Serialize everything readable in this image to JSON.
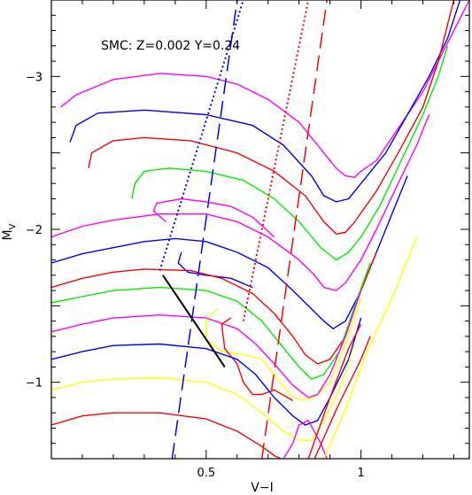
{
  "chart_data": {
    "type": "line",
    "title": "",
    "annotation": "SMC: Z=0.002 Y=0.24",
    "xlabel": "V−I",
    "ylabel_main": "M",
    "ylabel_sub": "V",
    "xlim": [
      0.0,
      1.35
    ],
    "ylim": [
      -0.5,
      -3.5
    ],
    "x_ticks": [
      {
        "value": 0.5,
        "label": "0.5"
      },
      {
        "value": 1.0,
        "label": "1"
      }
    ],
    "y_ticks": [
      {
        "value": -3,
        "label": "−3"
      },
      {
        "value": -2,
        "label": "−2"
      },
      {
        "value": -1,
        "label": "−1"
      }
    ],
    "grid": false,
    "colors": {
      "magenta": "#ff00ff",
      "blue": "#0000ff",
      "red": "#ff0000",
      "green": "#00ee00",
      "yellow": "#ffff00",
      "black": "#000000"
    },
    "tracks": [
      {
        "color": "magenta",
        "points": [
          [
            0.03,
            -2.8
          ],
          [
            0.08,
            -2.88
          ],
          [
            0.2,
            -2.98
          ],
          [
            0.35,
            -3.02
          ],
          [
            0.5,
            -3.0
          ],
          [
            0.6,
            -2.95
          ],
          [
            0.7,
            -2.85
          ],
          [
            0.8,
            -2.7
          ],
          [
            0.88,
            -2.5
          ],
          [
            0.92,
            -2.4
          ],
          [
            0.95,
            -2.35
          ],
          [
            0.98,
            -2.34
          ],
          [
            1.0,
            -2.38
          ],
          [
            1.05,
            -2.45
          ],
          [
            1.1,
            -2.6
          ],
          [
            1.2,
            -2.9
          ],
          [
            1.3,
            -3.3
          ],
          [
            1.35,
            -3.5
          ]
        ]
      },
      {
        "color": "blue",
        "points": [
          [
            0.06,
            -2.57
          ],
          [
            0.08,
            -2.68
          ],
          [
            0.15,
            -2.76
          ],
          [
            0.3,
            -2.78
          ],
          [
            0.5,
            -2.75
          ],
          [
            0.65,
            -2.68
          ],
          [
            0.75,
            -2.55
          ],
          [
            0.84,
            -2.35
          ],
          [
            0.88,
            -2.22
          ],
          [
            0.92,
            -2.18
          ],
          [
            0.96,
            -2.2
          ],
          [
            1.0,
            -2.3
          ],
          [
            1.08,
            -2.5
          ],
          [
            1.15,
            -2.75
          ],
          [
            1.22,
            -3.0
          ],
          [
            1.28,
            -3.25
          ],
          [
            1.32,
            -3.5
          ]
        ]
      },
      {
        "color": "red",
        "points": [
          [
            0.12,
            -2.4
          ],
          [
            0.13,
            -2.5
          ],
          [
            0.2,
            -2.58
          ],
          [
            0.3,
            -2.6
          ],
          [
            0.45,
            -2.58
          ],
          [
            0.6,
            -2.5
          ],
          [
            0.72,
            -2.38
          ],
          [
            0.82,
            -2.22
          ],
          [
            0.88,
            -2.05
          ],
          [
            0.92,
            -1.97
          ],
          [
            0.95,
            -1.98
          ],
          [
            0.98,
            -2.05
          ],
          [
            1.05,
            -2.25
          ],
          [
            1.12,
            -2.5
          ],
          [
            1.2,
            -2.8
          ],
          [
            1.25,
            -3.1
          ],
          [
            1.3,
            -3.5
          ]
        ]
      },
      {
        "color": "green",
        "points": [
          [
            0.26,
            -2.2
          ],
          [
            0.27,
            -2.3
          ],
          [
            0.3,
            -2.38
          ],
          [
            0.38,
            -2.4
          ],
          [
            0.5,
            -2.38
          ],
          [
            0.62,
            -2.32
          ],
          [
            0.72,
            -2.2
          ],
          [
            0.8,
            -2.05
          ],
          [
            0.87,
            -1.88
          ],
          [
            0.92,
            -1.8
          ],
          [
            0.96,
            -1.85
          ],
          [
            1.0,
            -1.95
          ],
          [
            1.06,
            -2.15
          ],
          [
            1.13,
            -2.45
          ],
          [
            1.2,
            -2.75
          ],
          [
            1.25,
            -3.0
          ],
          [
            1.28,
            -3.2
          ]
        ]
      },
      {
        "color": "magenta",
        "points": [
          [
            0.0,
            -1.95
          ],
          [
            0.1,
            -2.02
          ],
          [
            0.2,
            -2.06
          ],
          [
            0.35,
            -2.1
          ],
          [
            0.5,
            -2.1
          ],
          [
            0.6,
            -2.05
          ],
          [
            0.7,
            -1.95
          ],
          [
            0.8,
            -1.8
          ],
          [
            0.85,
            -1.7
          ],
          [
            0.88,
            -1.62
          ],
          [
            0.92,
            -1.6
          ],
          [
            0.95,
            -1.65
          ],
          [
            1.0,
            -1.8
          ],
          [
            1.05,
            -2.0
          ],
          [
            1.12,
            -2.3
          ],
          [
            1.18,
            -2.55
          ],
          [
            1.22,
            -2.75
          ]
        ]
      },
      {
        "color": "magenta",
        "points": [
          [
            0.37,
            -2.05
          ],
          [
            0.33,
            -2.12
          ],
          [
            0.34,
            -2.17
          ],
          [
            0.42,
            -2.2
          ],
          [
            0.5,
            -2.18
          ],
          [
            0.58,
            -2.15
          ],
          [
            0.65,
            -2.08
          ],
          [
            0.72,
            -1.95
          ]
        ]
      },
      {
        "color": "blue",
        "points": [
          [
            0.0,
            -1.78
          ],
          [
            0.1,
            -1.84
          ],
          [
            0.2,
            -1.88
          ],
          [
            0.3,
            -1.92
          ],
          [
            0.4,
            -1.94
          ],
          [
            0.5,
            -1.92
          ],
          [
            0.6,
            -1.85
          ],
          [
            0.7,
            -1.75
          ],
          [
            0.78,
            -1.6
          ],
          [
            0.84,
            -1.48
          ],
          [
            0.88,
            -1.4
          ],
          [
            0.91,
            -1.35
          ],
          [
            0.95,
            -1.4
          ],
          [
            1.0,
            -1.6
          ],
          [
            1.05,
            -1.85
          ],
          [
            1.1,
            -2.1
          ],
          [
            1.15,
            -2.35
          ]
        ]
      },
      {
        "color": "blue",
        "points": [
          [
            0.42,
            -1.85
          ],
          [
            0.41,
            -1.78
          ],
          [
            0.44,
            -1.72
          ],
          [
            0.5,
            -1.7
          ],
          [
            0.58,
            -1.68
          ],
          [
            0.65,
            -1.62
          ]
        ]
      },
      {
        "color": "red",
        "points": [
          [
            0.0,
            -1.62
          ],
          [
            0.1,
            -1.68
          ],
          [
            0.2,
            -1.72
          ],
          [
            0.3,
            -1.74
          ],
          [
            0.45,
            -1.73
          ],
          [
            0.55,
            -1.68
          ],
          [
            0.65,
            -1.58
          ],
          [
            0.72,
            -1.45
          ],
          [
            0.78,
            -1.3
          ],
          [
            0.82,
            -1.18
          ],
          [
            0.86,
            -1.12
          ],
          [
            0.9,
            -1.15
          ],
          [
            0.95,
            -1.3
          ],
          [
            1.0,
            -1.6
          ],
          [
            1.05,
            -1.85
          ]
        ]
      },
      {
        "color": "green",
        "points": [
          [
            0.0,
            -1.52
          ],
          [
            0.1,
            -1.56
          ],
          [
            0.2,
            -1.6
          ],
          [
            0.35,
            -1.62
          ],
          [
            0.5,
            -1.6
          ],
          [
            0.6,
            -1.53
          ],
          [
            0.68,
            -1.4
          ],
          [
            0.74,
            -1.25
          ],
          [
            0.8,
            -1.1
          ],
          [
            0.84,
            -1.02
          ],
          [
            0.88,
            -1.05
          ],
          [
            0.93,
            -1.2
          ],
          [
            0.98,
            -1.5
          ],
          [
            1.03,
            -1.78
          ]
        ]
      },
      {
        "color": "yellow",
        "points": [
          [
            0.54,
            -1.48
          ],
          [
            0.52,
            -1.45
          ],
          [
            0.5,
            -1.4
          ],
          [
            0.5,
            -1.28
          ],
          [
            0.55,
            -1.2
          ],
          [
            0.62,
            -1.18
          ],
          [
            0.68,
            -1.15
          ],
          [
            0.72,
            -1.05
          ],
          [
            0.77,
            -0.92
          ],
          [
            0.81,
            -0.88
          ],
          [
            0.85,
            -0.9
          ],
          [
            0.9,
            -1.0
          ],
          [
            0.95,
            -1.25
          ],
          [
            1.0,
            -1.55
          ]
        ]
      },
      {
        "color": "magenta",
        "points": [
          [
            0.0,
            -1.33
          ],
          [
            0.1,
            -1.38
          ],
          [
            0.2,
            -1.42
          ],
          [
            0.35,
            -1.44
          ],
          [
            0.5,
            -1.42
          ],
          [
            0.6,
            -1.35
          ],
          [
            0.66,
            -1.25
          ],
          [
            0.72,
            -1.12
          ],
          [
            0.78,
            -0.98
          ],
          [
            0.83,
            -0.9
          ],
          [
            0.86,
            -0.92
          ],
          [
            0.9,
            -1.05
          ],
          [
            0.95,
            -1.3
          ],
          [
            1.0,
            -1.6
          ]
        ]
      },
      {
        "color": "red",
        "points": [
          [
            0.58,
            -1.42
          ],
          [
            0.55,
            -1.38
          ],
          [
            0.56,
            -1.22
          ],
          [
            0.6,
            -1.12
          ],
          [
            0.62,
            -1.0
          ],
          [
            0.65,
            -0.92
          ],
          [
            0.68,
            -0.92
          ],
          [
            0.72,
            -0.95
          ],
          [
            0.78,
            -0.88
          ]
        ]
      },
      {
        "color": "blue",
        "points": [
          [
            0.0,
            -1.15
          ],
          [
            0.1,
            -1.2
          ],
          [
            0.2,
            -1.24
          ],
          [
            0.35,
            -1.25
          ],
          [
            0.5,
            -1.22
          ],
          [
            0.6,
            -1.15
          ],
          [
            0.66,
            -1.05
          ],
          [
            0.72,
            -0.9
          ],
          [
            0.78,
            -0.78
          ],
          [
            0.82,
            -0.72
          ],
          [
            0.86,
            -0.75
          ],
          [
            0.9,
            -0.9
          ],
          [
            0.96,
            -1.15
          ],
          [
            1.0,
            -1.42
          ]
        ]
      },
      {
        "color": "yellow",
        "points": [
          [
            0.0,
            -0.95
          ],
          [
            0.1,
            -1.0
          ],
          [
            0.2,
            -1.02
          ],
          [
            0.35,
            -1.03
          ],
          [
            0.5,
            -1.0
          ],
          [
            0.6,
            -0.92
          ],
          [
            0.68,
            -0.8
          ],
          [
            0.75,
            -0.68
          ],
          [
            0.8,
            -0.62
          ],
          [
            0.84,
            -0.62
          ],
          [
            0.88,
            -0.75
          ],
          [
            0.93,
            -0.95
          ],
          [
            0.98,
            -1.25
          ]
        ]
      },
      {
        "color": "red",
        "points": [
          [
            0.0,
            -0.72
          ],
          [
            0.1,
            -0.78
          ],
          [
            0.2,
            -0.8
          ],
          [
            0.35,
            -0.8
          ],
          [
            0.5,
            -0.76
          ],
          [
            0.6,
            -0.68
          ],
          [
            0.68,
            -0.58
          ],
          [
            0.72,
            -0.52
          ],
          [
            0.74,
            -0.5
          ]
        ]
      },
      {
        "color": "magenta",
        "points": [
          [
            0.75,
            -0.5
          ],
          [
            0.78,
            -0.6
          ],
          [
            0.8,
            -0.72
          ],
          [
            0.83,
            -0.75
          ],
          [
            0.87,
            -0.6
          ],
          [
            0.89,
            -0.5
          ]
        ]
      },
      {
        "color": "yellow",
        "points": [
          [
            0.88,
            -0.5
          ],
          [
            0.95,
            -0.82
          ],
          [
            1.02,
            -1.2
          ],
          [
            1.1,
            -1.55
          ],
          [
            1.18,
            -1.95
          ]
        ]
      },
      {
        "color": "red",
        "points": [
          [
            0.85,
            -0.5
          ],
          [
            0.92,
            -0.82
          ],
          [
            1.0,
            -1.15
          ],
          [
            1.03,
            -1.3
          ]
        ]
      },
      {
        "color": "red",
        "points": [
          [
            0.83,
            -0.5
          ],
          [
            0.9,
            -0.9
          ],
          [
            0.96,
            -1.22
          ],
          [
            1.0,
            -1.38
          ]
        ]
      }
    ],
    "boundaries": [
      {
        "color": "blue",
        "style": "dashed",
        "points": [
          [
            0.39,
            -0.5
          ],
          [
            0.6,
            -3.5
          ]
        ]
      },
      {
        "color": "blue",
        "style": "dotted",
        "points": [
          [
            0.35,
            -1.73
          ],
          [
            0.62,
            -3.5
          ]
        ]
      },
      {
        "color": "red",
        "style": "dashed",
        "points": [
          [
            0.68,
            -0.5
          ],
          [
            0.89,
            -3.5
          ]
        ]
      },
      {
        "color": "red",
        "style": "dotted",
        "points": [
          [
            0.62,
            -1.4
          ],
          [
            0.83,
            -3.5
          ]
        ]
      }
    ],
    "segment": {
      "color": "black",
      "points": [
        [
          0.36,
          -1.7
        ],
        [
          0.56,
          -1.1
        ]
      ]
    }
  }
}
